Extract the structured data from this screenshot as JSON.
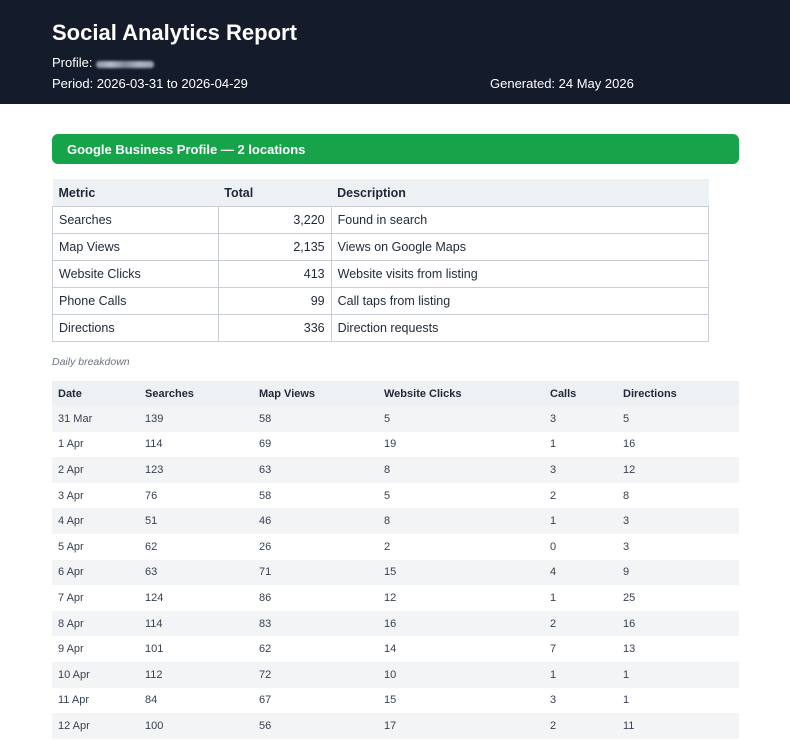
{
  "report": {
    "title": "Social Analytics Report",
    "profile_label": "Profile:",
    "period": "Period: 2026-03-31 to 2026-04-29",
    "generated": "Generated: 24 May 2026"
  },
  "section": {
    "title": "Google Business Profile — 2 locations",
    "color": "#16a34a"
  },
  "summary": {
    "headers": [
      "Metric",
      "Total",
      "Description"
    ],
    "rows": [
      {
        "metric": "Searches",
        "total": "3,220",
        "description": "Found in search"
      },
      {
        "metric": "Map Views",
        "total": "2,135",
        "description": "Views on Google Maps"
      },
      {
        "metric": "Website Clicks",
        "total": "413",
        "description": "Website visits from listing"
      },
      {
        "metric": "Phone Calls",
        "total": "99",
        "description": "Call taps from listing"
      },
      {
        "metric": "Directions",
        "total": "336",
        "description": "Direction requests"
      }
    ]
  },
  "daily": {
    "caption": "Daily breakdown",
    "headers": [
      "Date",
      "Searches",
      "Map Views",
      "Website Clicks",
      "Calls",
      "Directions"
    ],
    "rows": [
      [
        "31 Mar",
        "139",
        "58",
        "5",
        "3",
        "5"
      ],
      [
        "1 Apr",
        "114",
        "69",
        "19",
        "1",
        "16"
      ],
      [
        "2 Apr",
        "123",
        "63",
        "8",
        "3",
        "12"
      ],
      [
        "3 Apr",
        "76",
        "58",
        "5",
        "2",
        "8"
      ],
      [
        "4 Apr",
        "51",
        "46",
        "8",
        "1",
        "3"
      ],
      [
        "5 Apr",
        "62",
        "26",
        "2",
        "0",
        "3"
      ],
      [
        "6 Apr",
        "63",
        "71",
        "15",
        "4",
        "9"
      ],
      [
        "7 Apr",
        "124",
        "86",
        "12",
        "1",
        "25"
      ],
      [
        "8 Apr",
        "114",
        "83",
        "16",
        "2",
        "16"
      ],
      [
        "9 Apr",
        "101",
        "62",
        "14",
        "7",
        "13"
      ],
      [
        "10 Apr",
        "112",
        "72",
        "10",
        "1",
        "1"
      ],
      [
        "11 Apr",
        "84",
        "67",
        "15",
        "3",
        "1"
      ],
      [
        "12 Apr",
        "100",
        "56",
        "17",
        "2",
        "11"
      ]
    ]
  }
}
